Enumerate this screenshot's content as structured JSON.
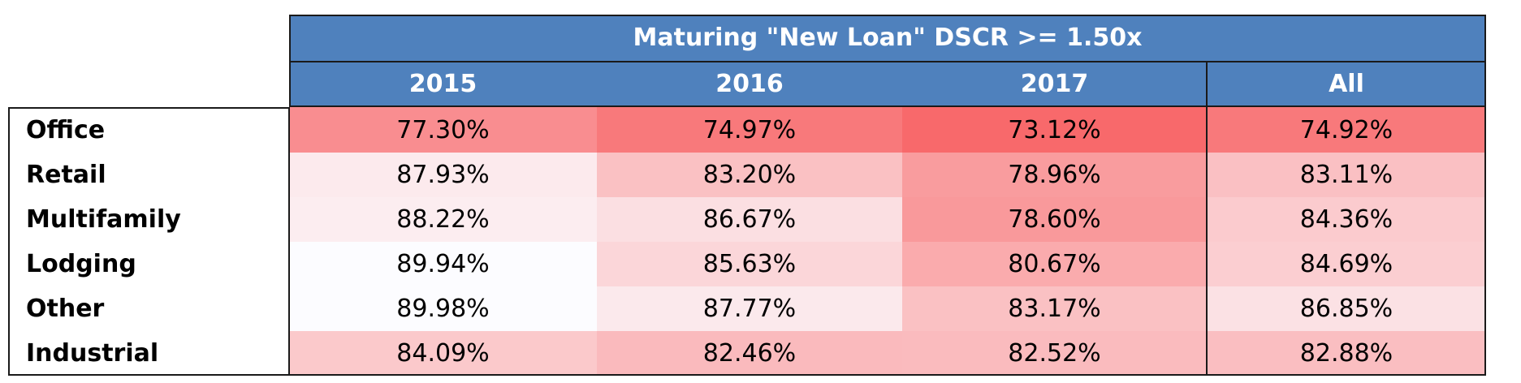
{
  "chart_data": {
    "type": "heatmap",
    "title": "Maturing \"New Loan\" DSCR >= 1.50x",
    "columns": [
      "2015",
      "2016",
      "2017",
      "All"
    ],
    "rows": [
      "Office",
      "Retail",
      "Multifamily",
      "Lodging",
      "Other",
      "Industrial"
    ],
    "values": [
      [
        "77.30%",
        "74.97%",
        "73.12%",
        "74.92%"
      ],
      [
        "87.93%",
        "83.20%",
        "78.96%",
        "83.11%"
      ],
      [
        "88.22%",
        "86.67%",
        "78.60%",
        "84.36%"
      ],
      [
        "89.94%",
        "85.63%",
        "80.67%",
        "84.69%"
      ],
      [
        "89.98%",
        "87.77%",
        "83.17%",
        "86.85%"
      ],
      [
        "84.09%",
        "82.46%",
        "82.52%",
        "82.88%"
      ]
    ],
    "color_scale": {
      "low": "#f8696b",
      "high": "#fcfcff"
    },
    "header_color": "#4f81bd"
  }
}
